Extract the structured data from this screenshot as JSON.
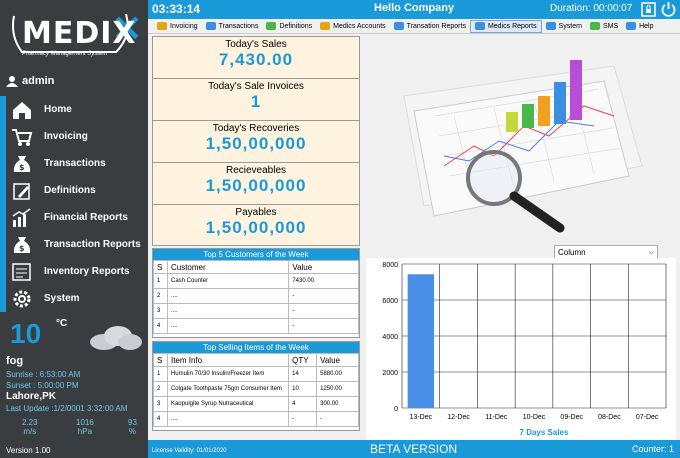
{
  "sidebar": {
    "logo": {
      "name": "MEDIX",
      "tagline": "Pharmacy Management System"
    },
    "user": "admin",
    "items": [
      {
        "label": "Home",
        "icon": "home-icon"
      },
      {
        "label": "Invoicing",
        "icon": "cart-icon"
      },
      {
        "label": "Transactions",
        "icon": "money-bag-icon"
      },
      {
        "label": "Definitions",
        "icon": "pencil-icon"
      },
      {
        "label": "Financial Reports",
        "icon": "chart-icon"
      },
      {
        "label": "Transaction Reports",
        "icon": "money-bag-icon"
      },
      {
        "label": "Inventory Reports",
        "icon": "report-icon"
      },
      {
        "label": "System",
        "icon": "gear-icon"
      }
    ],
    "weather": {
      "temp": "10",
      "unit": "°C",
      "condition": "fog",
      "sunrise": "Sunrise : 6:53:00 AM",
      "sunset": "Sunset : 5:00:00 PM",
      "city": "Lahore,PK",
      "last_update": "Last Update :1/2/0001 3:32:00 AM",
      "wind": "2.23",
      "wind_unit": "m/s",
      "pressure": "1016",
      "pressure_unit": "hPa",
      "humidity": "93",
      "humidity_unit": "%"
    },
    "version": "Version 1.00"
  },
  "topbar": {
    "clock": "03:33:14",
    "company": "Hello Company",
    "duration": "Duration:  00:00:07"
  },
  "menu": [
    {
      "label": "Invoicing",
      "active": false
    },
    {
      "label": "Transactions",
      "active": false
    },
    {
      "label": "Definitions",
      "active": false
    },
    {
      "label": "Medics Accounts",
      "active": false
    },
    {
      "label": "Transation Reports",
      "active": false
    },
    {
      "label": "Medics Reports",
      "active": true
    },
    {
      "label": "System",
      "active": false
    },
    {
      "label": "SMS",
      "active": false
    },
    {
      "label": "Help",
      "active": false
    }
  ],
  "stats": [
    {
      "label": "Today's Sales",
      "value": "7,430.00"
    },
    {
      "label": "Today's Sale Invoices",
      "value": "1"
    },
    {
      "label": "Today's Recoveries",
      "value": "1,50,00,000"
    },
    {
      "label": "Recieveables",
      "value": "1,50,00,000"
    },
    {
      "label": "Payables",
      "value": "1,50,00,000"
    }
  ],
  "customers": {
    "title": "Top 5 Customers of the Week",
    "headers": [
      "S",
      "Customer",
      "Value"
    ],
    "rows": [
      [
        "1",
        "Cash Counter",
        "7430.00"
      ],
      [
        "2",
        "....",
        "-"
      ],
      [
        "3",
        "....",
        "-"
      ],
      [
        "4",
        "....",
        "-"
      ]
    ]
  },
  "items": {
    "title": "Top Selling Items of the Week",
    "headers": [
      "S",
      "Item Info",
      "QTY",
      "Value"
    ],
    "rows": [
      [
        "1",
        "Humulin 70/30 Insulin/Freezer Item",
        "14",
        "5880.00"
      ],
      [
        "2",
        "Colgate Toothpaste 75gm Consumer Item",
        "10",
        "1250.00"
      ],
      [
        "3",
        "Kaopulgite Syrup Nutraceutical",
        "4",
        "300.00"
      ],
      [
        "4",
        "....",
        "-",
        "-"
      ]
    ]
  },
  "chart_select": "Column",
  "chart_data": {
    "type": "bar",
    "categories": [
      "13-Dec",
      "12-Dec",
      "11-Dec",
      "10-Dec",
      "09-Dec",
      "08-Dec",
      "07-Dec"
    ],
    "values": [
      7430,
      0,
      0,
      0,
      0,
      0,
      0
    ],
    "xlabel": "7 Days Sales",
    "ylabel": "",
    "ylim": [
      0,
      8000
    ],
    "yticks": [
      0,
      2000,
      4000,
      6000,
      8000
    ],
    "grid": true,
    "bar_color": "#4a8fe7"
  },
  "bottombar": {
    "license": "License Validity: 01/01/2020",
    "beta": "BETA VERSION",
    "counter": "Counter: 1"
  },
  "colors": {
    "accent": "#1a9ad9",
    "sidebar": "#3a3d3f",
    "stat_bg": "#fdf3df"
  }
}
